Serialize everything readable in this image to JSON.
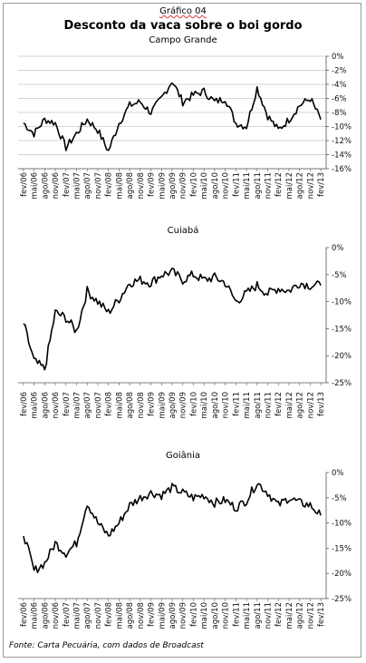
{
  "header": {
    "figure_label": "Gráfico 04",
    "title": "Desconto da vaca sobre o boi gordo",
    "subtitle": "Campo Grande"
  },
  "source": "Fonte: Carta Pecuária, com dados de Broadcast",
  "colors": {
    "line": "#000000",
    "grid": "#c8c8c8",
    "axis": "#555555"
  },
  "chart_data": [
    {
      "type": "line",
      "title": "Campo Grande",
      "ylim": [
        -16,
        0
      ],
      "yticks": [
        0,
        -2,
        -4,
        -6,
        -8,
        -10,
        -12,
        -14,
        -16
      ],
      "ytick_labels": [
        "0%",
        "-2%",
        "-4%",
        "-6%",
        "-8%",
        "-10%",
        "-12%",
        "-14%",
        "-16%"
      ],
      "xtick_labels": [
        "fev/06",
        "mai/06",
        "ago/06",
        "nov/06",
        "fev/07",
        "mai/07",
        "ago/07",
        "nov/07",
        "fev/08",
        "mai/08",
        "ago/08",
        "nov/08",
        "fev/09",
        "mai/09",
        "ago/09",
        "nov/09",
        "fev/10",
        "mai/10",
        "ago/10",
        "nov/10",
        "fev/11",
        "mai/11",
        "ago/11",
        "nov/11",
        "fev/12",
        "mai/12",
        "ago/12",
        "nov/12",
        "fev/13"
      ],
      "grid": true,
      "series": [
        {
          "x": [
            "fev/06",
            "mai/06",
            "ago/06",
            "nov/06",
            "fev/07",
            "mai/07",
            "ago/07",
            "nov/07",
            "fev/08",
            "mai/08",
            "ago/08",
            "nov/08",
            "fev/09",
            "mai/09",
            "ago/09",
            "nov/09",
            "fev/10",
            "mai/10",
            "ago/10",
            "nov/10",
            "fev/11",
            "mai/11",
            "ago/11",
            "nov/11",
            "fev/12",
            "mai/12",
            "ago/12",
            "nov/12",
            "fev/13"
          ],
          "values": [
            -9.5,
            -11.0,
            -9.0,
            -9.5,
            -13.0,
            -11.0,
            -9.0,
            -10.5,
            -13.5,
            -9.5,
            -7.0,
            -6.5,
            -8.0,
            -6.0,
            -3.5,
            -6.5,
            -5.5,
            -5.0,
            -6.5,
            -6.0,
            -9.5,
            -10.0,
            -4.5,
            -8.5,
            -10.5,
            -9.0,
            -7.0,
            -6.0,
            -9.0
          ]
        }
      ]
    },
    {
      "type": "line",
      "title": "Cuiabá",
      "ylim": [
        -25,
        0
      ],
      "yticks": [
        0,
        -5,
        -10,
        -15,
        -20,
        -25
      ],
      "ytick_labels": [
        "0%",
        "-5%",
        "-10%",
        "-15%",
        "-20%",
        "-25%"
      ],
      "xtick_labels": [
        "fev/06",
        "mai/06",
        "ago/06",
        "nov/06",
        "fev/07",
        "mai/07",
        "ago/07",
        "nov/07",
        "fev/08",
        "mai/08",
        "ago/08",
        "nov/08",
        "fev/09",
        "mai/09",
        "ago/09",
        "nov/09",
        "fev/10",
        "mai/10",
        "ago/10",
        "nov/10",
        "fev/11",
        "mai/11",
        "ago/11",
        "nov/11",
        "fev/12",
        "mai/12",
        "ago/12",
        "nov/12",
        "fev/13"
      ],
      "grid": false,
      "series": [
        {
          "x": [
            "fev/06",
            "mai/06",
            "ago/06",
            "nov/06",
            "fev/07",
            "mai/07",
            "ago/07",
            "nov/07",
            "fev/08",
            "mai/08",
            "ago/08",
            "nov/08",
            "fev/09",
            "mai/09",
            "ago/09",
            "nov/09",
            "fev/10",
            "mai/10",
            "ago/10",
            "nov/10",
            "fev/11",
            "mai/11",
            "ago/11",
            "nov/11",
            "fev/12",
            "mai/12",
            "ago/12",
            "nov/12",
            "fev/13"
          ],
          "values": [
            -14.0,
            -21.0,
            -22.5,
            -12.0,
            -13.0,
            -15.5,
            -8.0,
            -10.0,
            -12.0,
            -9.5,
            -6.5,
            -6.0,
            -6.5,
            -5.0,
            -4.5,
            -6.0,
            -5.0,
            -6.0,
            -5.5,
            -6.5,
            -10.0,
            -8.5,
            -7.0,
            -8.5,
            -7.5,
            -8.0,
            -6.5,
            -7.0,
            -7.0
          ]
        }
      ]
    },
    {
      "type": "line",
      "title": "Goiânia",
      "ylim": [
        -25,
        0
      ],
      "yticks": [
        0,
        -5,
        -10,
        -15,
        -20,
        -25
      ],
      "ytick_labels": [
        "0%",
        "-5%",
        "-10%",
        "-15%",
        "-20%",
        "-25%"
      ],
      "xtick_labels": [
        "fev/06",
        "mai/06",
        "ago/06",
        "nov/06",
        "fev/07",
        "mai/07",
        "ago/07",
        "nov/07",
        "fev/08",
        "mai/08",
        "ago/08",
        "nov/08",
        "fev/09",
        "mai/09",
        "ago/09",
        "nov/09",
        "fev/10",
        "mai/10",
        "ago/10",
        "nov/10",
        "fev/11",
        "mai/11",
        "ago/11",
        "nov/11",
        "fev/12",
        "mai/12",
        "ago/12",
        "nov/12",
        "fev/13"
      ],
      "grid": false,
      "series": [
        {
          "x": [
            "fev/06",
            "mai/06",
            "ago/06",
            "nov/06",
            "fev/07",
            "mai/07",
            "ago/07",
            "nov/07",
            "fev/08",
            "mai/08",
            "ago/08",
            "nov/08",
            "fev/09",
            "mai/09",
            "ago/09",
            "nov/09",
            "fev/10",
            "mai/10",
            "ago/10",
            "nov/10",
            "fev/11",
            "mai/11",
            "ago/11",
            "nov/11",
            "fev/12",
            "mai/12",
            "ago/12",
            "nov/12",
            "fev/13"
          ],
          "values": [
            -12.0,
            -19.5,
            -18.0,
            -14.0,
            -16.0,
            -14.0,
            -6.0,
            -10.0,
            -12.5,
            -10.0,
            -6.5,
            -5.0,
            -4.0,
            -4.5,
            -3.0,
            -4.0,
            -5.0,
            -4.5,
            -6.0,
            -5.5,
            -7.0,
            -5.5,
            -2.0,
            -4.0,
            -6.5,
            -5.0,
            -6.0,
            -6.5,
            -8.5
          ]
        }
      ]
    }
  ]
}
